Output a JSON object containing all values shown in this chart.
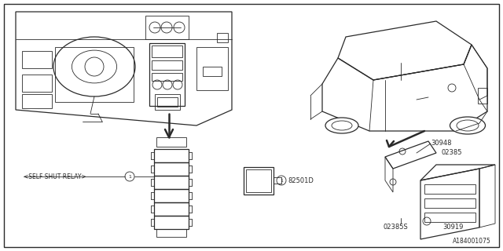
{
  "bg_color": "#ffffff",
  "line_color": "#2a2a2a",
  "text_color": "#2a2a2a",
  "labels": {
    "self_shut_relay": "<SELF SHUT RELAY>",
    "circle1": "1",
    "part_82501D": "82501D",
    "part_30948": "30948",
    "part_02385_top": "02385",
    "part_02385_bot": "02385S",
    "part_30919": "30919",
    "ref_num": "A184001075"
  },
  "figsize": [
    6.4,
    3.2
  ],
  "dpi": 100
}
